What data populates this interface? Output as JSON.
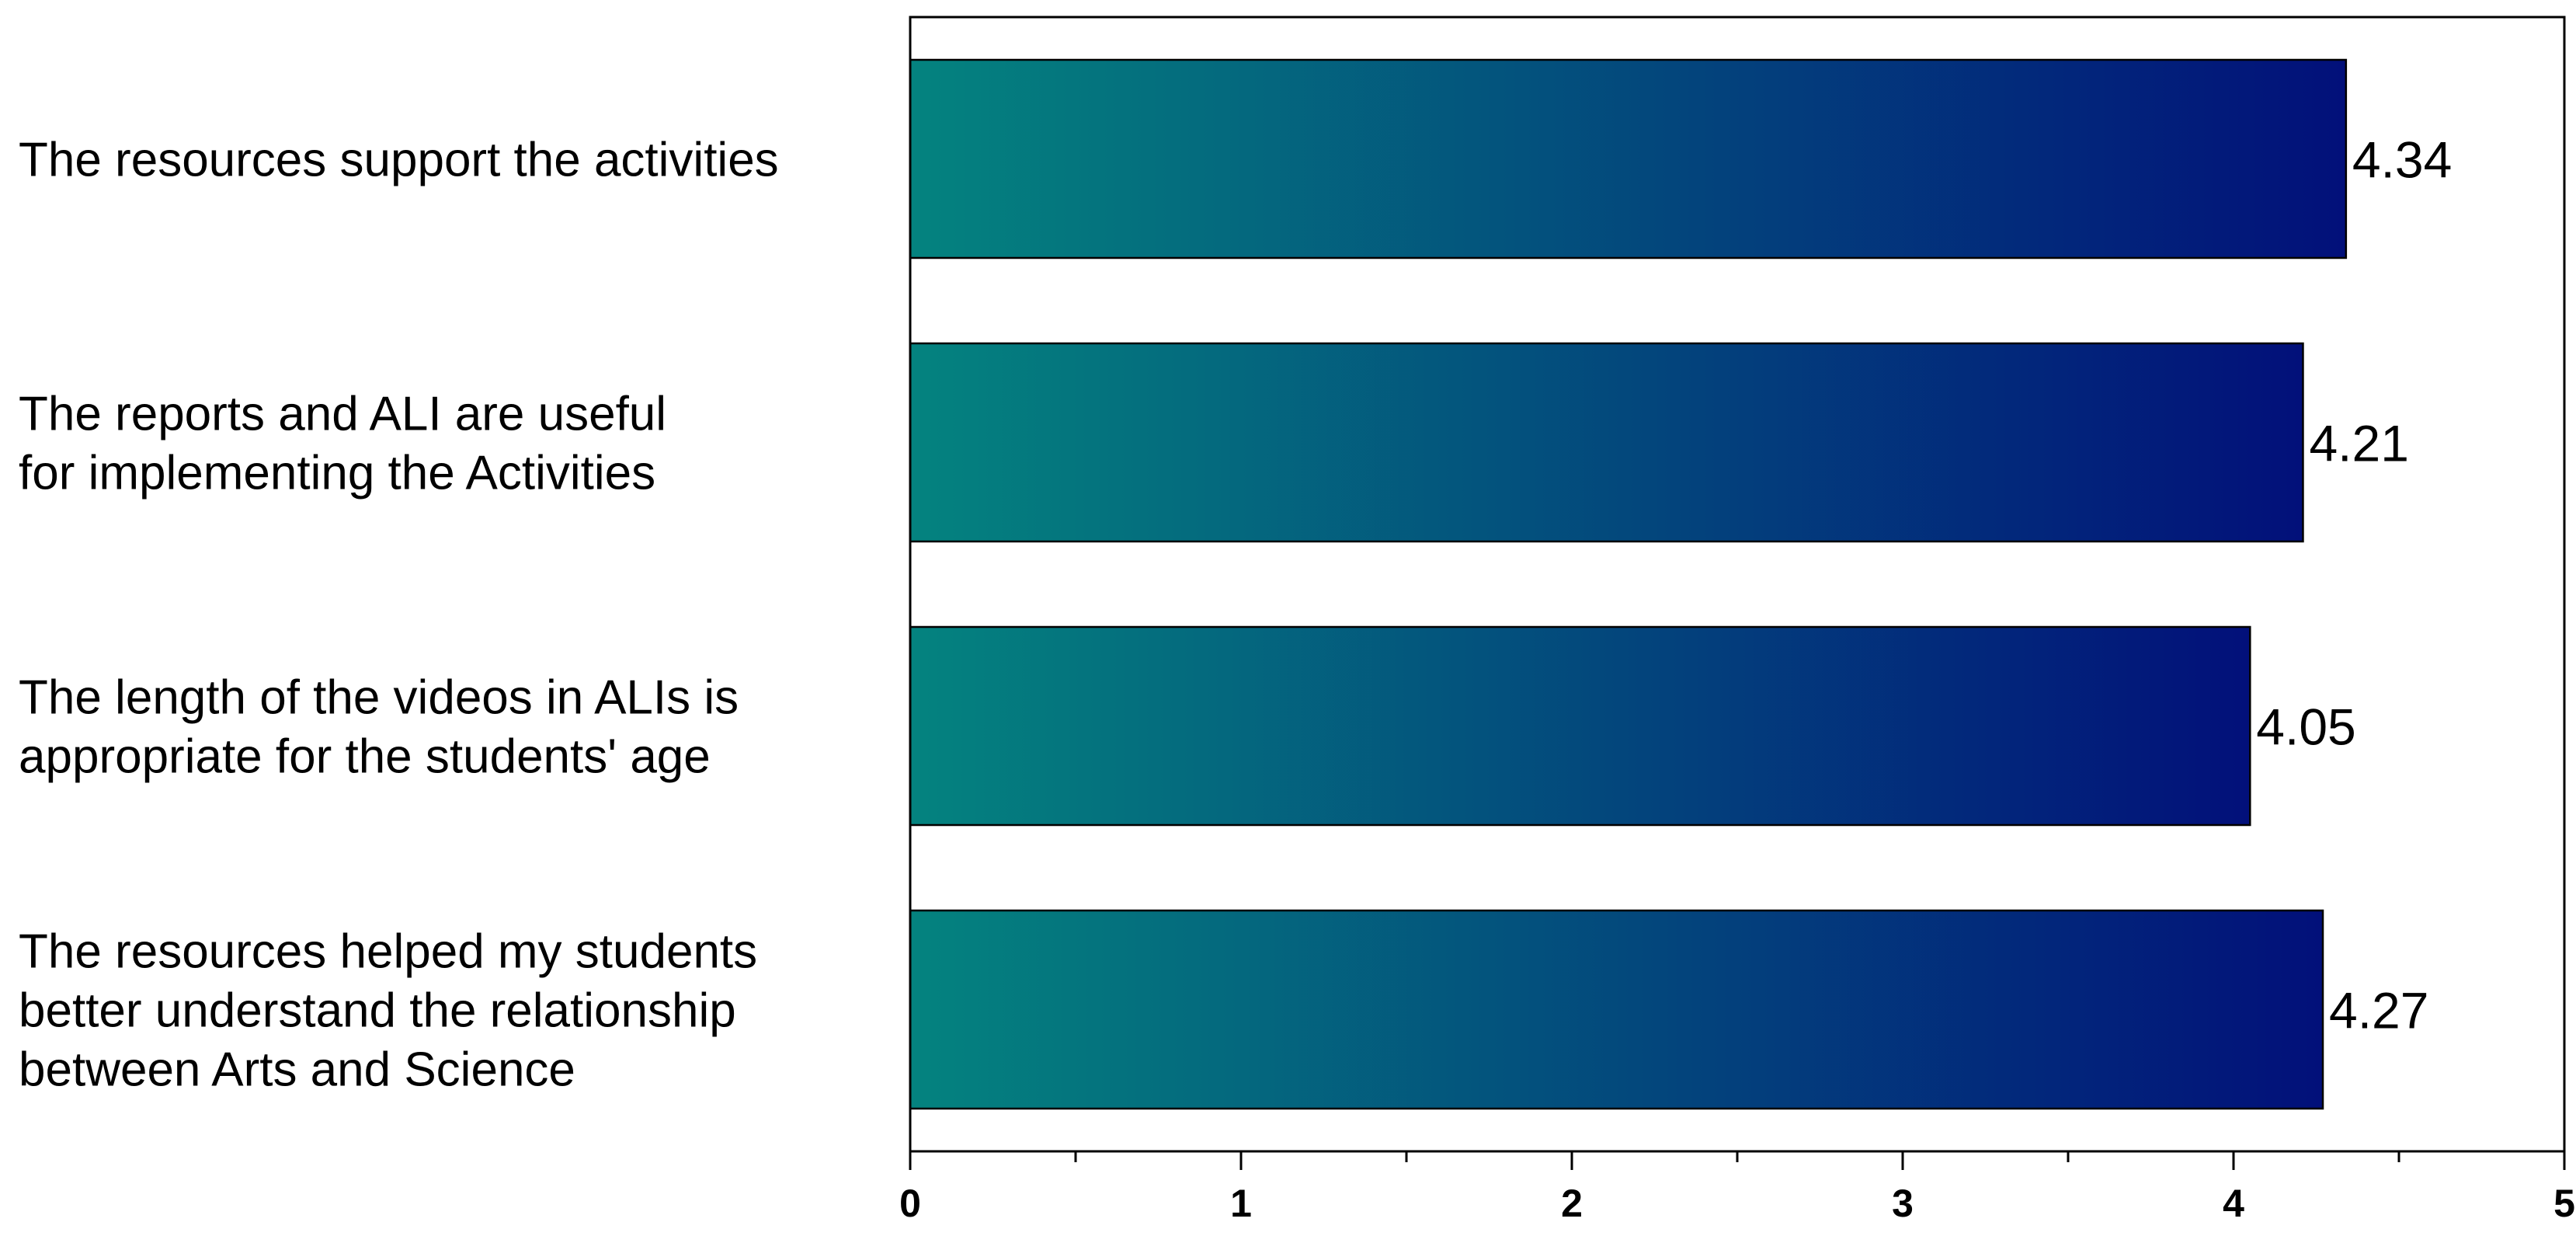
{
  "chart_data": {
    "type": "bar",
    "orientation": "horizontal",
    "title": "",
    "xlabel": "",
    "ylabel": "",
    "xlim": [
      0,
      5
    ],
    "x_ticks": [
      "0",
      "1",
      "2",
      "3",
      "4",
      "5"
    ],
    "grid": false,
    "legend": "none",
    "colors": {
      "bar_start": "#04837f",
      "bar_end": "#02107a",
      "bar_edge": "#000000"
    },
    "categories": [
      [
        "The resources support the activities"
      ],
      [
        "The reports and ALI are useful",
        "for implementing the Activities"
      ],
      [
        "The length of the videos in ALIs is",
        "appropriate for the students' age"
      ],
      [
        "The resources helped my students",
        "better understand the relationship",
        "between Arts and Science"
      ]
    ],
    "values": [
      4.34,
      4.21,
      4.05,
      4.27
    ],
    "value_labels": [
      "4.34",
      "4.21",
      "4.05",
      "4.27"
    ]
  }
}
